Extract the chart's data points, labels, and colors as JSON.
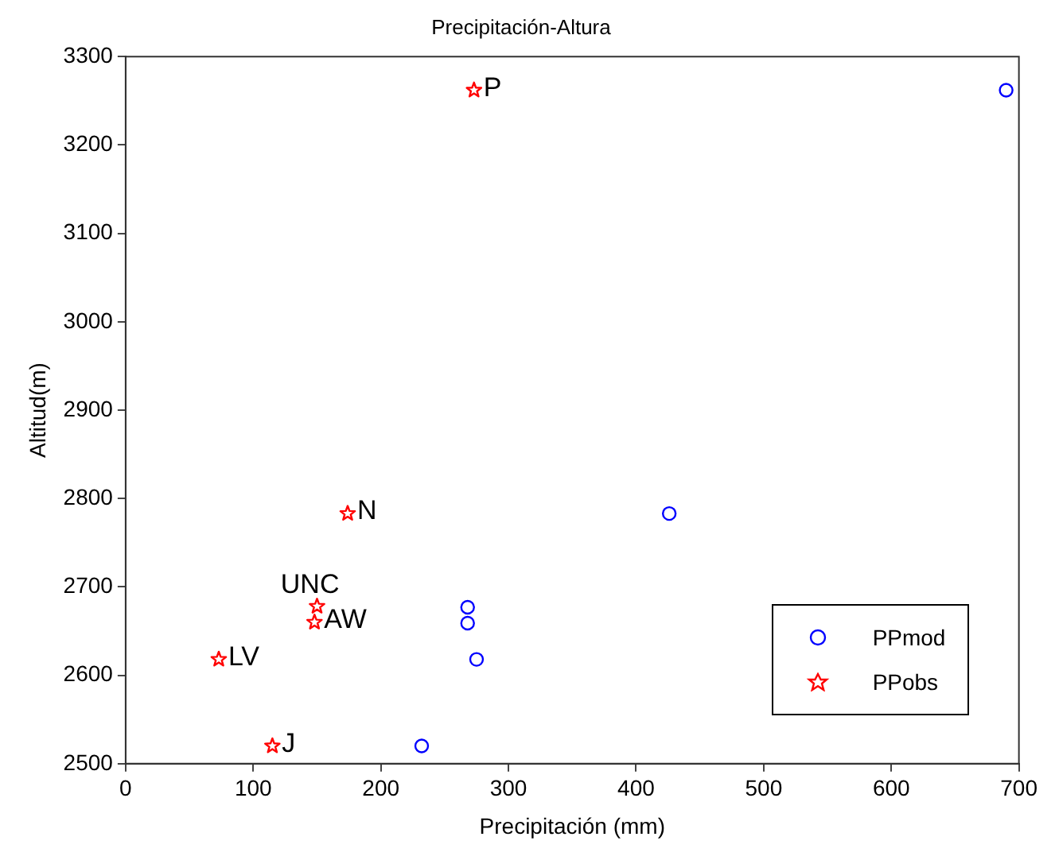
{
  "chart_data": {
    "type": "scatter",
    "title": "Precipitación-Altura",
    "xlabel": "Precipitación (mm)",
    "ylabel": "Altitud(m)",
    "xlim": [
      0,
      700
    ],
    "xticks": [
      0,
      100,
      200,
      300,
      400,
      500,
      600,
      700
    ],
    "ylim": [
      2500,
      3300
    ],
    "yticks": [
      2500,
      2600,
      2700,
      2800,
      2900,
      3000,
      3100,
      3200,
      3300
    ],
    "grid": false,
    "legend": "bottom right",
    "series": [
      {
        "name": "PPmod",
        "color": "#0000ff",
        "marker": "circle",
        "x": [
          690,
          426,
          268,
          268,
          275,
          232
        ],
        "values": [
          3262,
          2783,
          2677,
          2659,
          2618,
          2520
        ]
      },
      {
        "name": "PPobs",
        "color": "#ff0000",
        "marker": "star",
        "x": [
          273,
          174,
          148,
          150,
          73,
          115
        ],
        "values": [
          3262,
          2783,
          2660,
          2678,
          2618,
          2520
        ]
      }
    ],
    "annotations": [
      {
        "text": "P",
        "x": 273,
        "y": 3262
      },
      {
        "text": "N",
        "x": 174,
        "y": 2783
      },
      {
        "text": "AW",
        "x": 148,
        "y": 2660
      },
      {
        "text": "UNC",
        "x": 150,
        "y": 2678
      },
      {
        "text": "LV",
        "x": 73,
        "y": 2618
      },
      {
        "text": "J",
        "x": 115,
        "y": 2520
      }
    ]
  }
}
